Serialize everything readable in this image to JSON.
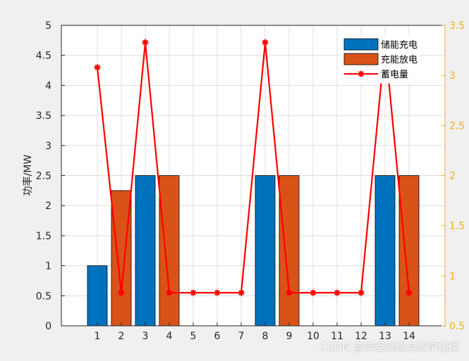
{
  "chart_data": {
    "type": "bar",
    "categories": [
      "1",
      "2",
      "3",
      "4",
      "5",
      "6",
      "7",
      "8",
      "9",
      "10",
      "11",
      "12",
      "13",
      "14"
    ],
    "series": [
      {
        "name": "储能充电",
        "values": [
          1,
          0,
          2.5,
          0,
          0,
          0,
          0,
          2.5,
          0,
          0,
          0,
          0,
          2.5,
          0
        ],
        "color": "#0072BD"
      },
      {
        "name": "充能放电",
        "values": [
          0,
          2.25,
          0,
          2.5,
          0,
          0,
          0,
          0,
          2.5,
          0,
          0,
          0,
          0,
          2.5
        ],
        "color": "#D95319"
      },
      {
        "name": "蓄电量",
        "type": "line",
        "axis": "right",
        "values": [
          3.08,
          0.83,
          3.33,
          0.83,
          0.83,
          0.83,
          0.83,
          3.33,
          0.83,
          0.83,
          0.83,
          0.83,
          3.33,
          0.83
        ],
        "color": "#FF0000"
      }
    ],
    "ylabel": "功率/MW",
    "ylim": [
      0,
      5
    ],
    "yticks": [
      "0",
      "0.5",
      "1",
      "1.5",
      "2",
      "2.5",
      "3",
      "3.5",
      "4",
      "4.5",
      "5"
    ],
    "y2lim": [
      0.5,
      3.5
    ],
    "y2ticks": [
      "0.5",
      "1",
      "1.5",
      "2",
      "2.5",
      "3",
      "3.5"
    ],
    "y2color": "#EDB120",
    "grid": true,
    "legend_position": "top-right"
  },
  "watermark": "CSDN @神经网络与数学建模"
}
